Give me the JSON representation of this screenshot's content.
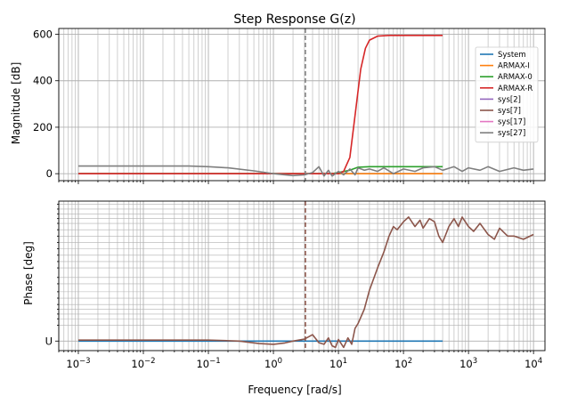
{
  "figure": {
    "title": "Step Response G(z)",
    "x_label": "Frequency [rad/s]"
  },
  "chart_data": [
    {
      "type": "line",
      "panel": "magnitude",
      "title": "Step Response G(z)",
      "xlabel": "",
      "ylabel": "Magnitude [dB]",
      "xscale": "log",
      "xlim": [
        0.0005,
        15000
      ],
      "ylim": [
        -30,
        625
      ],
      "yticks": [
        0,
        200,
        400,
        600
      ],
      "ytick_labels": [
        "0",
        "200",
        "400",
        "600"
      ],
      "grid": true,
      "vline": 3.1,
      "legend": {
        "placement": "right",
        "entries": [
          "System",
          "ARMAX-I",
          "ARMAX-0",
          "ARMAX-R",
          "sys[2]",
          "sys[7]",
          "sys[17]",
          "sys[27]"
        ]
      },
      "series": [
        {
          "name": "System",
          "color": "#1f77b4",
          "x": [
            0.001,
            400
          ],
          "y": [
            0,
            0
          ]
        },
        {
          "name": "ARMAX-I",
          "color": "#ff7f0e",
          "x": [
            0.001,
            400
          ],
          "y": [
            0,
            0
          ]
        },
        {
          "name": "ARMAX-0",
          "color": "#2ca02c",
          "x": [
            0.001,
            8,
            15,
            20,
            30,
            400
          ],
          "y": [
            0,
            0,
            15,
            28,
            30,
            30
          ]
        },
        {
          "name": "ARMAX-R",
          "color": "#d62728",
          "x": [
            0.001,
            10,
            12,
            15,
            18,
            22,
            26,
            30,
            40,
            60,
            400
          ],
          "y": [
            0,
            0,
            10,
            70,
            250,
            450,
            540,
            575,
            592,
            595,
            595
          ]
        },
        {
          "name": "sys[2]",
          "color": "#9467bd",
          "x": [],
          "y": []
        },
        {
          "name": "sys[7]",
          "color": "#8c564b",
          "x": [],
          "y": []
        },
        {
          "name": "sys[17]",
          "color": "#e377c2",
          "x": [],
          "y": []
        },
        {
          "name": "sys[27]",
          "color": "#7f7f7f",
          "x": [
            0.001,
            0.01,
            0.05,
            0.1,
            0.2,
            0.5,
            1,
            2,
            3,
            4,
            5,
            6,
            7,
            8,
            10,
            12,
            15,
            18,
            20,
            25,
            30,
            40,
            50,
            70,
            100,
            150,
            200,
            300,
            400,
            600,
            800,
            1000,
            1500,
            2000,
            3000,
            5000,
            7000,
            10000
          ],
          "y": [
            33,
            33,
            33,
            30,
            25,
            12,
            0,
            -8,
            -5,
            5,
            30,
            -10,
            15,
            -10,
            10,
            -5,
            20,
            -5,
            25,
            15,
            20,
            10,
            25,
            0,
            20,
            10,
            25,
            30,
            15,
            30,
            10,
            25,
            15,
            30,
            10,
            25,
            15,
            20
          ]
        }
      ]
    },
    {
      "type": "line",
      "panel": "phase",
      "xlabel": "Frequency [rad/s]",
      "ylabel": "Phase [deg]",
      "xscale": "log",
      "xlim": [
        0.0005,
        15000
      ],
      "ylim": [
        -0.3,
        4.4
      ],
      "yticks": [
        0
      ],
      "ytick_labels": [
        "U"
      ],
      "xtick_labels": [
        "10⁻³",
        "10⁻²",
        "10⁻¹",
        "10⁰",
        "10¹",
        "10²",
        "10³",
        "10⁴"
      ],
      "grid": true,
      "vline": 3.1,
      "series": [
        {
          "name": "System",
          "color": "#1f77b4",
          "x": [
            0.001,
            400
          ],
          "y": [
            0,
            0
          ]
        },
        {
          "name": "sys[7]",
          "color": "#8c564b",
          "x": [
            0.001,
            0.1,
            0.3,
            0.6,
            1,
            1.5,
            2,
            3,
            4,
            5,
            6,
            7,
            8,
            9,
            10,
            12,
            14,
            16,
            18,
            20,
            25,
            30,
            40,
            50,
            60,
            70,
            80,
            100,
            120,
            150,
            180,
            200,
            250,
            300,
            350,
            400,
            500,
            600,
            700,
            800,
            1000,
            1200,
            1500,
            2000,
            2500,
            3000,
            4000,
            5000,
            7000,
            10000
          ],
          "y": [
            0.03,
            0.03,
            0,
            -0.08,
            -0.1,
            -0.06,
            0,
            0.06,
            0.2,
            -0.05,
            -0.1,
            0.1,
            -0.15,
            -0.2,
            0.05,
            -0.2,
            0.1,
            -0.1,
            0.4,
            0.55,
            1,
            1.6,
            2.3,
            2.8,
            3.3,
            3.6,
            3.5,
            3.75,
            3.9,
            3.6,
            3.8,
            3.55,
            3.85,
            3.75,
            3.3,
            3.1,
            3.6,
            3.85,
            3.6,
            3.9,
            3.6,
            3.45,
            3.7,
            3.35,
            3.2,
            3.55,
            3.3,
            3.3,
            3.2,
            3.35
          ]
        }
      ]
    }
  ]
}
